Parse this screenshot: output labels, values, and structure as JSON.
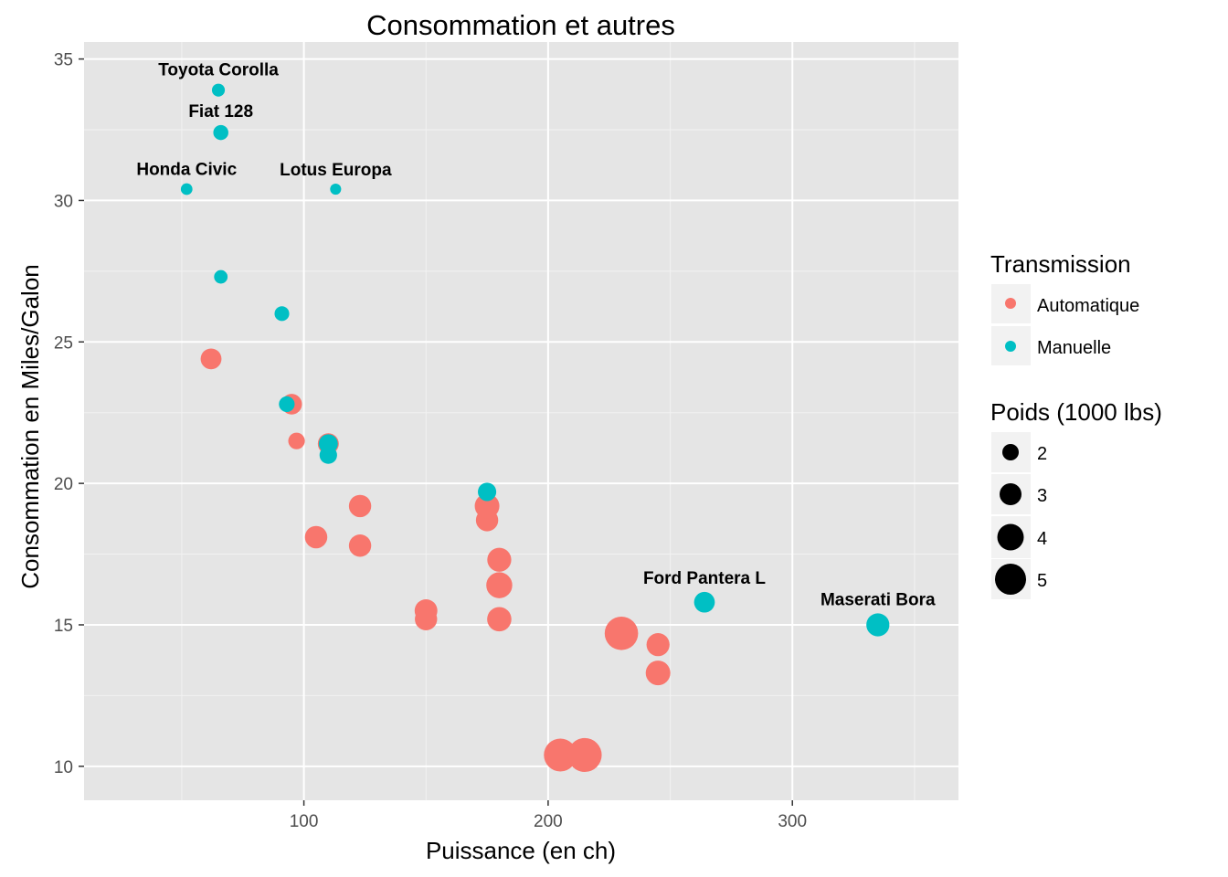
{
  "chart_data": {
    "type": "scatter",
    "title": "Consommation et autres",
    "xlabel": "Puissance (en ch)",
    "ylabel": "Consommation en Miles/Galon",
    "xlim": [
      10,
      368
    ],
    "ylim": [
      8.8,
      35.6
    ],
    "xticks": [
      100,
      200,
      300
    ],
    "yticks": [
      10,
      15,
      20,
      25,
      30,
      35
    ],
    "grid": true,
    "legend_position": "right",
    "color_legend": {
      "title": "Transmission",
      "entries": [
        {
          "label": "Automatique",
          "color": "#F8766D"
        },
        {
          "label": "Manuelle",
          "color": "#00BFC4"
        }
      ]
    },
    "size_legend": {
      "title": "Poids (1000 lbs)",
      "entries": [
        {
          "label": "2",
          "value": 2
        },
        {
          "label": "3",
          "value": 3
        },
        {
          "label": "4",
          "value": 4
        },
        {
          "label": "5",
          "value": 5
        }
      ]
    },
    "series": [
      {
        "name": "Automatique",
        "color": "#F8766D",
        "points": [
          {
            "x": 110,
            "y": 21.4,
            "w": 3.215
          },
          {
            "x": 175,
            "y": 18.7,
            "w": 3.44
          },
          {
            "x": 105,
            "y": 18.1,
            "w": 3.46
          },
          {
            "x": 245,
            "y": 14.3,
            "w": 3.57
          },
          {
            "x": 62,
            "y": 24.4,
            "w": 3.19
          },
          {
            "x": 95,
            "y": 22.8,
            "w": 3.15
          },
          {
            "x": 123,
            "y": 19.2,
            "w": 3.44
          },
          {
            "x": 123,
            "y": 17.8,
            "w": 3.44
          },
          {
            "x": 180,
            "y": 16.4,
            "w": 4.07
          },
          {
            "x": 180,
            "y": 17.3,
            "w": 3.73
          },
          {
            "x": 180,
            "y": 15.2,
            "w": 3.78
          },
          {
            "x": 205,
            "y": 10.4,
            "w": 5.25
          },
          {
            "x": 215,
            "y": 10.4,
            "w": 5.424
          },
          {
            "x": 230,
            "y": 14.7,
            "w": 5.345
          },
          {
            "x": 97,
            "y": 21.5,
            "w": 2.465
          },
          {
            "x": 150,
            "y": 15.5,
            "w": 3.52
          },
          {
            "x": 150,
            "y": 15.2,
            "w": 3.435
          },
          {
            "x": 245,
            "y": 13.3,
            "w": 3.84
          },
          {
            "x": 175,
            "y": 19.2,
            "w": 3.845
          }
        ]
      },
      {
        "name": "Manuelle",
        "color": "#00BFC4",
        "points": [
          {
            "x": 110,
            "y": 21.0,
            "w": 2.62
          },
          {
            "x": 110,
            "y": 21.4,
            "w": 2.875
          },
          {
            "x": 93,
            "y": 22.8,
            "w": 2.32
          },
          {
            "x": 66,
            "y": 32.4,
            "w": 2.2,
            "label": "Fiat 128"
          },
          {
            "x": 52,
            "y": 30.4,
            "w": 1.615,
            "label": "Honda Civic"
          },
          {
            "x": 65,
            "y": 33.9,
            "w": 1.835,
            "label": "Toyota Corolla"
          },
          {
            "x": 66,
            "y": 27.3,
            "w": 1.935
          },
          {
            "x": 91,
            "y": 26.0,
            "w": 2.14
          },
          {
            "x": 113,
            "y": 30.4,
            "w": 1.513,
            "label": "Lotus Europa"
          },
          {
            "x": 264,
            "y": 15.8,
            "w": 3.17,
            "label": "Ford Pantera L"
          },
          {
            "x": 175,
            "y": 19.7,
            "w": 2.77
          },
          {
            "x": 335,
            "y": 15.0,
            "w": 3.57,
            "label": "Maserati Bora"
          }
        ]
      }
    ]
  }
}
